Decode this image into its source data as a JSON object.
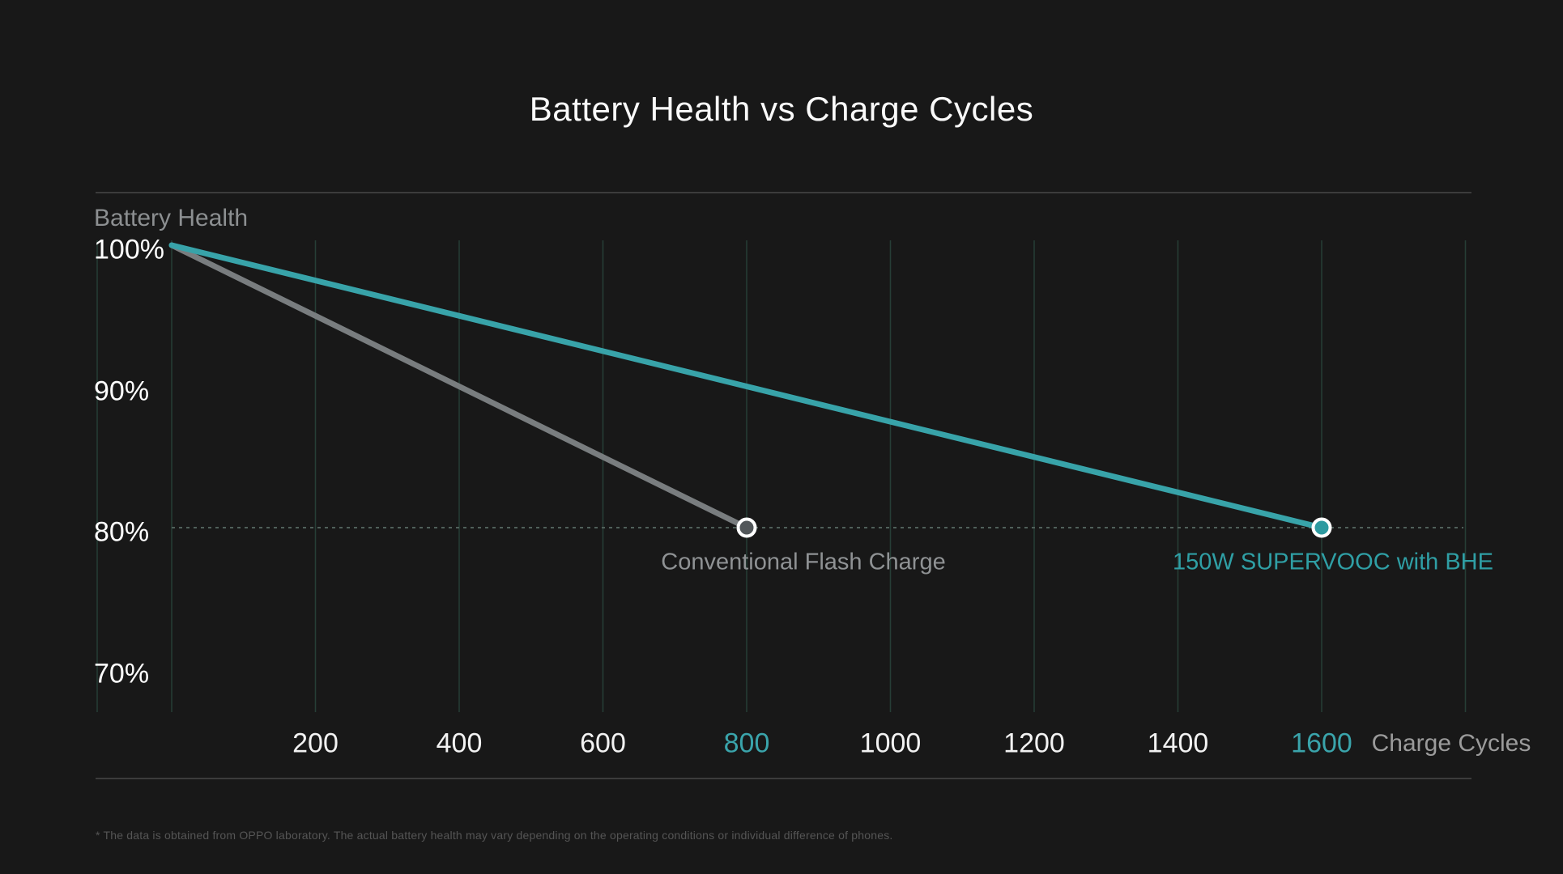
{
  "title": "Battery Health vs Charge Cycles",
  "footnote": "* The data is obtained from OPPO laboratory. The actual battery health may vary depending on the operating conditions or individual difference of phones.",
  "colors": {
    "background": "#181818",
    "accent_teal": "#38a3a9",
    "accent_teal_text": "#2f9fa5",
    "series_gray": "#797d7f",
    "gray_marker_fill": "#52575a",
    "teal_marker_fill": "#2d9aa0",
    "marker_ring": "#ffffff",
    "grid_line": "#263e36",
    "frame_rule": "#3c3c3c",
    "dotted_reference": "#50605a",
    "tick_text": "#f2f2f2",
    "muted_text": "#8c8f91"
  },
  "chart_data": {
    "type": "line",
    "title": "Battery Health vs Charge Cycles",
    "xlabel": "Charge Cycles",
    "ylabel": "Battery Health",
    "xlim": [
      0,
      1800
    ],
    "ylim": [
      70,
      100
    ],
    "grid": "vertical",
    "grid_step": 200,
    "x_ticks": [
      200,
      400,
      600,
      800,
      1000,
      1200,
      1400,
      1600
    ],
    "x_ticks_accent": [
      800,
      1600
    ],
    "y_ticks": [
      {
        "label": "100%",
        "value": 100
      },
      {
        "label": "90%",
        "value": 90
      },
      {
        "label": "80%",
        "value": 80
      },
      {
        "label": "70%",
        "value": 70
      }
    ],
    "reference_line": {
      "y": 80,
      "style": "dotted"
    },
    "series": [
      {
        "name": "Conventional Flash Charge",
        "color_key": "gray",
        "x": [
          0,
          800
        ],
        "y": [
          100,
          80
        ],
        "endpoint": {
          "x": 800,
          "y": 80
        }
      },
      {
        "name": "150W SUPERVOOC with BHE",
        "color_key": "teal",
        "x": [
          0,
          1600
        ],
        "y": [
          100,
          80
        ],
        "endpoint": {
          "x": 1600,
          "y": 80
        }
      }
    ],
    "legend_position": "under-endpoints"
  }
}
